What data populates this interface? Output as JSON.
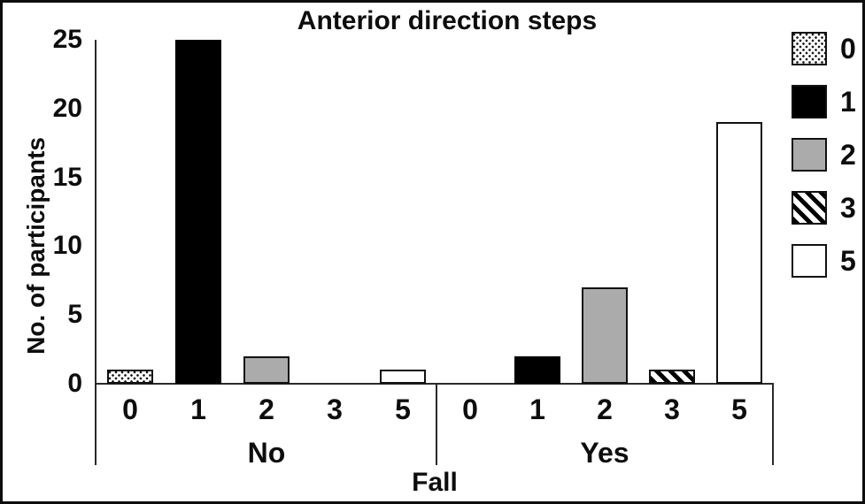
{
  "figure": {
    "title": "Anterior direction steps",
    "ylabel": "No. of participants",
    "xlabel": "Fall"
  },
  "chart_data": {
    "type": "bar",
    "title": "Anterior direction steps",
    "xlabel": "Fall",
    "ylabel": "No. of participants",
    "ylim": [
      0,
      25
    ],
    "yticks": [
      0,
      5,
      10,
      15,
      20,
      25
    ],
    "grid": false,
    "legend_position": "right",
    "groups": [
      "No",
      "Yes"
    ],
    "categories": [
      "0",
      "1",
      "2",
      "3",
      "5"
    ],
    "category_patterns": [
      "dotted",
      "black",
      "gray",
      "hatch",
      "white"
    ],
    "series": [
      {
        "name": "No",
        "values": [
          1,
          25,
          2,
          0,
          1
        ]
      },
      {
        "name": "Yes",
        "values": [
          0,
          2,
          7,
          1,
          19
        ]
      }
    ],
    "legend": [
      {
        "label": "0",
        "pattern": "dotted"
      },
      {
        "label": "1",
        "pattern": "black"
      },
      {
        "label": "2",
        "pattern": "gray"
      },
      {
        "label": "3",
        "pattern": "hatch"
      },
      {
        "label": "5",
        "pattern": "white"
      }
    ],
    "colors": {
      "bar_black": "#000000",
      "bar_gray": "#ababab",
      "bar_white": "#ffffff",
      "axis": "#2a2a2a"
    }
  }
}
